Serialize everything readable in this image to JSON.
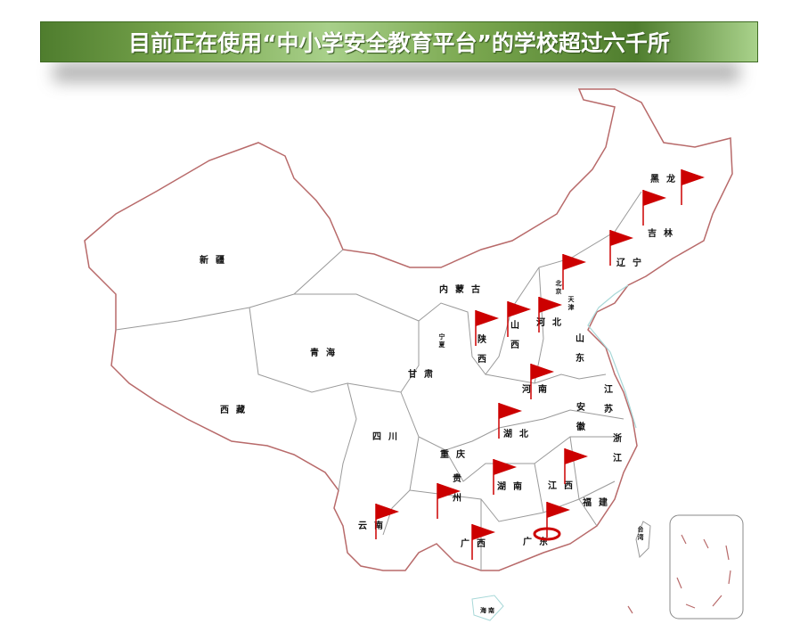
{
  "banner": {
    "title": "目前正在使用“中小学安全教育平台”的学校超过六千所"
  },
  "map": {
    "border_color": "#b86a6a",
    "province_border_color": "#9a9a9a",
    "coast_color": "#a8d8d8",
    "flag_color": "#cc0000",
    "provinces": [
      "黑龙",
      "吉林",
      "辽宁",
      "北京",
      "天津",
      "河北",
      "山东",
      "山西",
      "陕西",
      "内蒙古",
      "宁夏",
      "甘肃",
      "青海",
      "新疆",
      "西藏",
      "四川",
      "重庆",
      "贵州",
      "云南",
      "广西",
      "广东",
      "湖南",
      "湖北",
      "河南",
      "安徽",
      "江苏",
      "浙江",
      "江西",
      "福建",
      "台湾",
      "海南"
    ],
    "flag_count": 15,
    "highlighted": "广东"
  }
}
